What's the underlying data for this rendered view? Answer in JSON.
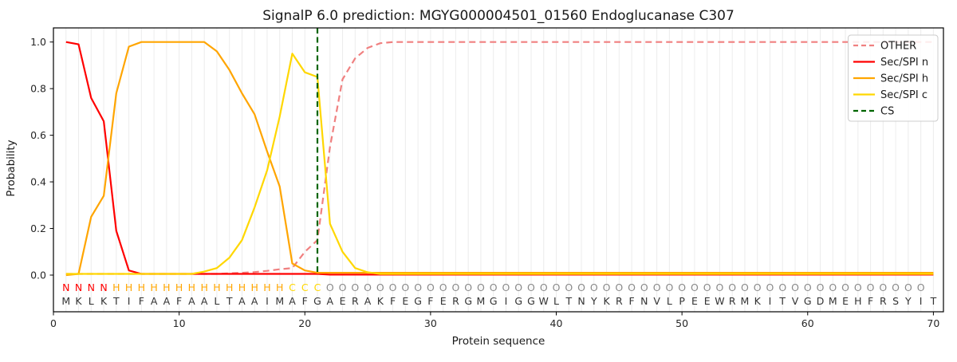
{
  "title": "SignalP 6.0 prediction: MGYG000004501_01560 Endoglucanase C307",
  "chart_data": {
    "type": "line",
    "title": "SignalP 6.0 prediction: MGYG000004501_01560 Endoglucanase C307",
    "xlabel": "Protein sequence",
    "ylabel": "Probability",
    "xlim": [
      0,
      70.8
    ],
    "ylim": [
      -0.155,
      1.065
    ],
    "xticks": [
      "0",
      "10",
      "20",
      "30",
      "40",
      "50",
      "60",
      "70"
    ],
    "xtick_values": [
      0,
      10,
      20,
      30,
      40,
      50,
      60,
      70
    ],
    "yticks": [
      "0.0",
      "0.2",
      "0.4",
      "0.6",
      "0.8",
      "1.0"
    ],
    "ytick_values": [
      0,
      0.2,
      0.4,
      0.6,
      0.8,
      1.0
    ],
    "grid": "vertical line at every residue position, light gray",
    "legend_position": "upper right",
    "sequence": "MKLKTIFAAFAALTAAIMAFGAERAKFEGFERGMGIGGWLTNYKRFNVLPEEWRMKITVGDMEHFRSYIT",
    "region_labels": "NNNNHHHHHHHHHHHHHHCCCOOOOOOOOOOOOOOOOOOOOOOOOOOOOOOOOOOOOOOOOOOOOOOOO",
    "region_colors": {
      "N": "#ff0000",
      "H": "#ffa500",
      "C": "#ffd700",
      "O": "#8a8a8a"
    },
    "sequence_color": "#333333",
    "series": [
      {
        "name": "OTHER",
        "color": "#f08080",
        "line": "dashed",
        "values": [
          0.005,
          0.005,
          0.005,
          0.005,
          0.005,
          0.005,
          0.005,
          0.005,
          0.005,
          0.005,
          0.005,
          0.005,
          0.005,
          0.008,
          0.01,
          0.013,
          0.018,
          0.025,
          0.03,
          0.1,
          0.15,
          0.55,
          0.84,
          0.93,
          0.975,
          0.995,
          1,
          1,
          1,
          1,
          1,
          1,
          1,
          1,
          1,
          1,
          1,
          1,
          1,
          1,
          1,
          1,
          1,
          1,
          1,
          1,
          1,
          1,
          1,
          1,
          1,
          1,
          1,
          1,
          1,
          1,
          1,
          1,
          1,
          1,
          1,
          1,
          1,
          1,
          1,
          1,
          1,
          1,
          1,
          1
        ]
      },
      {
        "name": "Sec/SPI n",
        "color": "#ff0000",
        "line": "solid",
        "values": [
          1,
          0.99,
          0.76,
          0.66,
          0.19,
          0.02,
          0.005,
          0.005,
          0.005,
          0.005,
          0.005,
          0.005,
          0.005,
          0.005,
          0.005,
          0.005,
          0.005,
          0.005,
          0.005,
          0.005,
          0.005,
          0.002,
          0.002,
          0.002,
          0.002,
          0.002,
          0.002,
          0.002,
          0.002,
          0.002,
          0.002,
          0.002,
          0.002,
          0.002,
          0.002,
          0.002,
          0.002,
          0.002,
          0.002,
          0.002,
          0.002,
          0.002,
          0.002,
          0.002,
          0.002,
          0.002,
          0.002,
          0.002,
          0.002,
          0.002,
          0.002,
          0.002,
          0.002,
          0.002,
          0.002,
          0.002,
          0.002,
          0.002,
          0.002,
          0.002,
          0.002,
          0.002,
          0.002,
          0.002,
          0.002,
          0.002,
          0.002,
          0.002,
          0.002,
          0.002
        ]
      },
      {
        "name": "Sec/SPI h",
        "color": "#ffa500",
        "line": "solid",
        "values": [
          0,
          0.005,
          0.25,
          0.34,
          0.78,
          0.98,
          1,
          1,
          1,
          1,
          1,
          1,
          0.96,
          0.88,
          0.78,
          0.69,
          0.53,
          0.38,
          0.05,
          0.02,
          0.01,
          0.01,
          0.01,
          0.01,
          0.01,
          0.01,
          0.01,
          0.01,
          0.01,
          0.01,
          0.01,
          0.01,
          0.01,
          0.01,
          0.01,
          0.01,
          0.01,
          0.01,
          0.01,
          0.01,
          0.01,
          0.01,
          0.01,
          0.01,
          0.01,
          0.01,
          0.01,
          0.01,
          0.01,
          0.01,
          0.01,
          0.01,
          0.01,
          0.01,
          0.01,
          0.01,
          0.01,
          0.01,
          0.01,
          0.01,
          0.01,
          0.01,
          0.01,
          0.01,
          0.01,
          0.01,
          0.01,
          0.01,
          0.01,
          0.01
        ]
      },
      {
        "name": "Sec/SPI c",
        "color": "#ffd700",
        "line": "solid",
        "values": [
          0.005,
          0.005,
          0.005,
          0.005,
          0.005,
          0.005,
          0.005,
          0.005,
          0.005,
          0.005,
          0.005,
          0.015,
          0.03,
          0.075,
          0.15,
          0.29,
          0.45,
          0.68,
          0.95,
          0.87,
          0.85,
          0.22,
          0.1,
          0.03,
          0.012,
          0.005,
          0.005,
          0.005,
          0.005,
          0.005,
          0.005,
          0.005,
          0.005,
          0.005,
          0.005,
          0.005,
          0.005,
          0.005,
          0.005,
          0.005,
          0.005,
          0.005,
          0.005,
          0.005,
          0.005,
          0.005,
          0.005,
          0.005,
          0.005,
          0.005,
          0.005,
          0.005,
          0.005,
          0.005,
          0.005,
          0.005,
          0.005,
          0.005,
          0.005,
          0.005,
          0.005,
          0.005,
          0.005,
          0.005,
          0.005,
          0.005,
          0.005,
          0.005,
          0.005,
          0.005
        ]
      },
      {
        "name": "CS",
        "color": "#006400",
        "line": "dashed",
        "vline_at": 21
      }
    ]
  }
}
